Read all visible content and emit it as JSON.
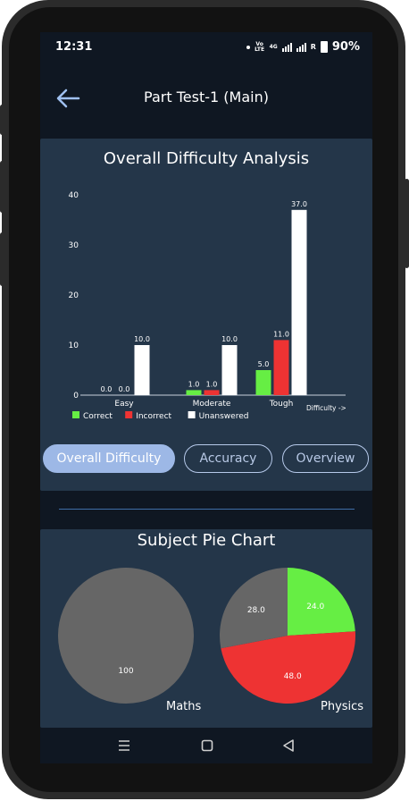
{
  "status_bar": {
    "time": "12:31",
    "network_label": "Vo LTE",
    "network_gen": "4G",
    "roaming": "R",
    "battery": "90%"
  },
  "app_bar": {
    "title": "Part Test-1 (Main)",
    "back_icon": "arrow-left-icon"
  },
  "difficulty_card": {
    "title": "Overall Difficulty Analysis"
  },
  "tabs": [
    {
      "label": "Overall Difficulty",
      "active": true
    },
    {
      "label": "Accuracy",
      "active": false
    },
    {
      "label": "Overview",
      "active": false
    }
  ],
  "pie_card": {
    "title": "Subject Pie Chart"
  },
  "nav": {
    "recents_icon": "recents-icon",
    "home_icon": "home-icon",
    "back_icon": "triangle-back-icon"
  },
  "colors": {
    "correct": "#66ee44",
    "incorrect": "#ee3333",
    "unanswered": "#ffffff",
    "pie_gray": "#666666",
    "card_bg": "#243649",
    "accent": "#9db8e6"
  },
  "chart_data": [
    {
      "type": "bar",
      "title": "Overall Difficulty Analysis",
      "categories": [
        "Easy",
        "Moderate",
        "Tough"
      ],
      "series": [
        {
          "name": "Correct",
          "color": "#66ee44",
          "values": [
            0.0,
            1.0,
            5.0
          ]
        },
        {
          "name": "Incorrect",
          "color": "#ee3333",
          "values": [
            0.0,
            1.0,
            11.0
          ]
        },
        {
          "name": "Unanswered",
          "color": "#ffffff",
          "values": [
            10.0,
            10.0,
            37.0
          ]
        }
      ],
      "value_labels": [
        [
          "0.0",
          "0.0",
          "10.0"
        ],
        [
          "1.0",
          "1.0",
          "10.0"
        ],
        [
          "5.0",
          "11.0",
          "37.0"
        ]
      ],
      "xlabel": "Difficulty ->",
      "ylabel": "",
      "ylim": [
        0,
        40
      ],
      "yticks": [
        "0",
        "10",
        "20",
        "30",
        "40"
      ],
      "legend": "bottom-left",
      "grid": false
    },
    {
      "type": "pie",
      "title": "Subject Pie Chart",
      "charts": [
        {
          "name": "Maths",
          "slices": [
            {
              "label": "100",
              "value": 100,
              "color": "#666666"
            }
          ]
        },
        {
          "name": "Physics",
          "slices": [
            {
              "label": "24.0",
              "value": 24.0,
              "color": "#66ee44"
            },
            {
              "label": "48.0",
              "value": 48.0,
              "color": "#ee3333"
            },
            {
              "label": "28.0",
              "value": 28.0,
              "color": "#666666"
            }
          ]
        }
      ]
    }
  ]
}
